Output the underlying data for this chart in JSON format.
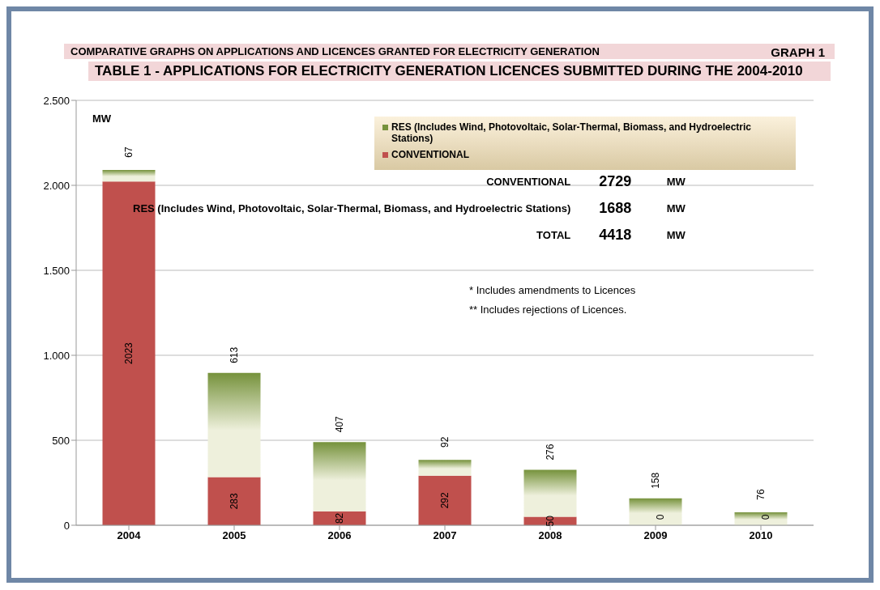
{
  "chart_data": {
    "type": "bar",
    "stacked": true,
    "title": "COMPARATIVE GRAPHS ON APPLICATIONS AND LICENCES GRANTED FOR ELECTRICITY GENERATION",
    "subtitle": "TABLE 1 -  APPLICATIONS FOR ELECTRICITY GENERATION LICENCES SUBMITTED DURING THE 2004-2010",
    "ylabel": "MW",
    "categories": [
      "2004",
      "2005",
      "2006",
      "2007",
      "2008",
      "2009",
      "2010"
    ],
    "series": [
      {
        "name": "CONVENTIONAL",
        "color": "#c0504d",
        "values": [
          2023,
          283,
          82,
          292,
          50,
          0,
          0
        ]
      },
      {
        "name": "RES (Includes Wind, Photovoltaic, Solar-Thermal, Biomass, and Hydroelectric Stations)",
        "color": "#76923c",
        "values": [
          67,
          613,
          407,
          92,
          276,
          158,
          76
        ]
      }
    ],
    "ylim": [
      0,
      2500
    ],
    "yticks": [
      {
        "value": 0,
        "label": "0"
      },
      {
        "value": 500,
        "label": "500"
      },
      {
        "value": 1000,
        "label": "1.000"
      },
      {
        "value": 1500,
        "label": "1.500"
      },
      {
        "value": 2000,
        "label": "2.000"
      },
      {
        "value": 2500,
        "label": "2.500"
      }
    ],
    "grid": "y",
    "legend": "top right",
    "data_labels": true,
    "annotations": [
      "GRAPH 1",
      "CONVENTIONAL",
      "2729",
      "MW",
      "RES (Includes Wind, Photovoltaic, Solar-Thermal, Biomass, and Hydroelectric Stations)",
      "1688",
      "MW",
      "TOTAL",
      "4418",
      "MW",
      "* Includes amendments to Licences",
      "** Includes rejections of Licences."
    ]
  }
}
